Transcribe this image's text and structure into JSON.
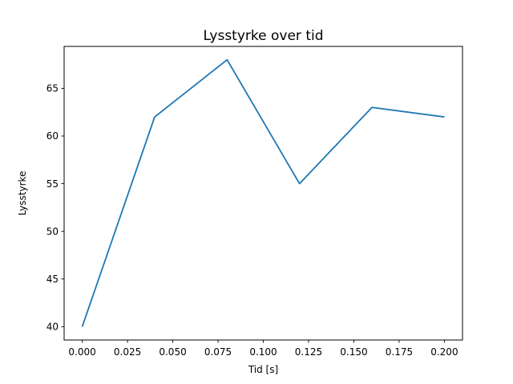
{
  "chart_data": {
    "type": "line",
    "title": "Lysstyrke over tid",
    "xlabel": "Tid [s]",
    "ylabel": "Lysstyrke",
    "x": [
      0.0,
      0.04,
      0.08,
      0.12,
      0.16,
      0.2
    ],
    "series": [
      {
        "name": "Lysstyrke",
        "values": [
          40,
          62,
          68,
          55,
          63,
          62
        ]
      }
    ],
    "xlim": [
      -0.01,
      0.21
    ],
    "ylim": [
      38.6,
      69.4
    ],
    "x_ticks": [
      0.0,
      0.025,
      0.05,
      0.075,
      0.1,
      0.125,
      0.15,
      0.175,
      0.2
    ],
    "x_tick_labels": [
      "0.000",
      "0.025",
      "0.050",
      "0.075",
      "0.100",
      "0.125",
      "0.150",
      "0.175",
      "0.200"
    ],
    "y_ticks": [
      40,
      45,
      50,
      55,
      60,
      65
    ],
    "y_tick_labels": [
      "40",
      "45",
      "50",
      "55",
      "60",
      "65"
    ],
    "grid": false,
    "legend_position": "none",
    "line_color": "#1f77b4",
    "axis_color": "#000000",
    "background_color": "#ffffff"
  }
}
